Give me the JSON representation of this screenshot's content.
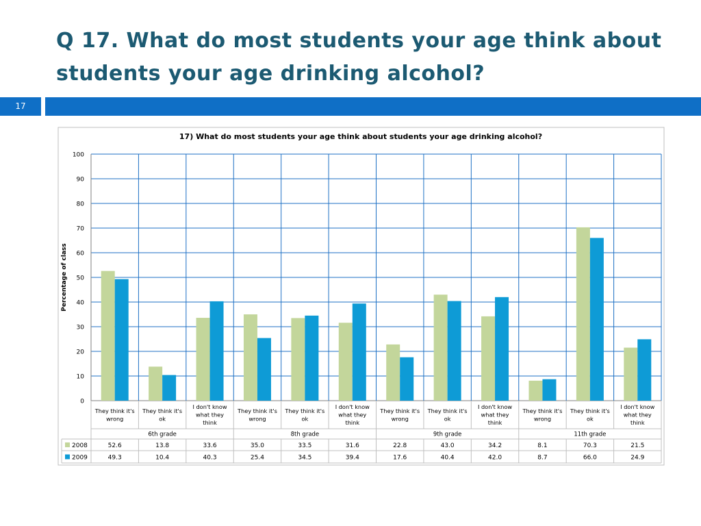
{
  "slide": {
    "title": "Q 17. What do most students your age think about students your age drinking alcohol?",
    "page_number": "17"
  },
  "colors": {
    "title": "#1c5a72",
    "band": "#0f6fc6",
    "series_2008": "#c3d69b",
    "series_2009": "#0e9bd6",
    "grid": "#1c6fc4"
  },
  "chart_data": {
    "type": "bar",
    "title": "17) What do most students your age think about students your age drinking alcohol?",
    "ylabel": "Percentage of class",
    "xlabel": "",
    "ylim": [
      0,
      100
    ],
    "yticks": [
      0,
      10,
      20,
      30,
      40,
      50,
      60,
      70,
      80,
      90,
      100
    ],
    "grid": true,
    "categories": [
      [
        "They think it's",
        "wrong"
      ],
      [
        "They think it's",
        "ok"
      ],
      [
        "I don't know",
        "what they",
        "think"
      ],
      [
        "They think it's",
        "wrong"
      ],
      [
        "They think it's",
        "ok"
      ],
      [
        "I don't know",
        "what they",
        "think"
      ],
      [
        "They think it's",
        "wrong"
      ],
      [
        "They think it's",
        "ok"
      ],
      [
        "I don't know",
        "what they",
        "think"
      ],
      [
        "They think it's",
        "wrong"
      ],
      [
        "They think it's",
        "ok"
      ],
      [
        "I don't know",
        "what they",
        "think"
      ]
    ],
    "groups": [
      "6th grade",
      "8th grade",
      "9th grade",
      "11th grade"
    ],
    "series": [
      {
        "name": "2008",
        "values": [
          52.6,
          13.8,
          33.6,
          35.0,
          33.5,
          31.6,
          22.8,
          43.0,
          34.2,
          8.1,
          70.3,
          21.5
        ],
        "labels": [
          "52.6",
          "13.8",
          "33.6",
          "35.0",
          "33.5",
          "31.6",
          "22.8",
          "43.0",
          "34.2",
          "8.1",
          "70.3",
          "21.5"
        ]
      },
      {
        "name": "2009",
        "values": [
          49.3,
          10.4,
          40.3,
          25.4,
          34.5,
          39.4,
          17.6,
          40.4,
          42.0,
          8.7,
          66.0,
          24.9
        ],
        "labels": [
          "49.3",
          "10.4",
          "40.3",
          "25.4",
          "34.5",
          "39.4",
          "17.6",
          "40.4",
          "42.0",
          "8.7",
          "66.0",
          "24.9"
        ]
      }
    ],
    "legend": "data-table"
  }
}
